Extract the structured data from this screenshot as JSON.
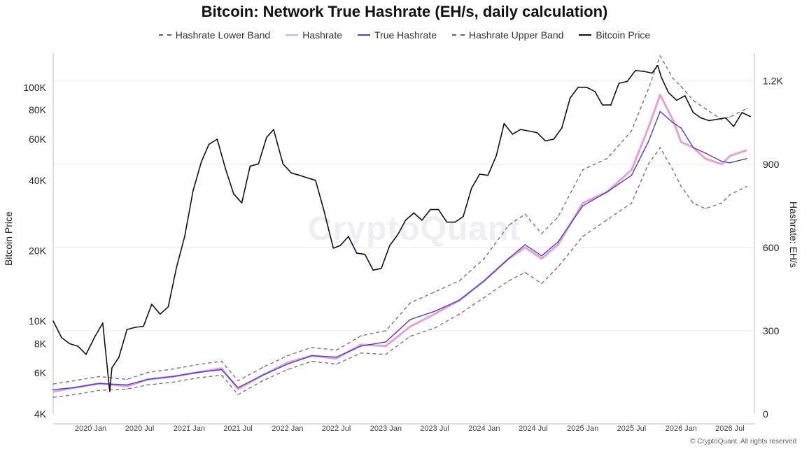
{
  "chart_data": {
    "type": "line",
    "title": "Bitcoin: Network True Hashrate (EH/s, daily calculation)",
    "ylabel_left": "Bitcoin Price",
    "ylabel_right": "Hashrate: EH/s",
    "left_axis": {
      "scale": "log",
      "range": [
        4000,
        140000
      ],
      "ticks": [
        4000,
        6000,
        8000,
        10000,
        20000,
        40000,
        60000,
        80000,
        100000
      ],
      "tick_labels": [
        "4K",
        "6K",
        "8K",
        "10K",
        "20K",
        "40K",
        "60K",
        "80K",
        "100K"
      ]
    },
    "right_axis": {
      "scale": "linear",
      "range": [
        0,
        1300
      ],
      "ticks": [
        0,
        300,
        600,
        900,
        1200
      ],
      "tick_labels": [
        "0",
        "300",
        "600",
        "900",
        "1.2K"
      ]
    },
    "x_axis": {
      "range": [
        "2019-08-15",
        "2026-09-30"
      ],
      "ticks": [
        "2020-01-01",
        "2020-07-01",
        "2021-01-01",
        "2021-07-01",
        "2022-01-01",
        "2022-07-01",
        "2023-01-01",
        "2023-07-01",
        "2024-01-01",
        "2024-07-01",
        "2025-01-01",
        "2025-07-01",
        "2026-01-01",
        "2026-07-01"
      ],
      "tick_labels": [
        "2020 Jan",
        "2020 Jul",
        "2021 Jan",
        "2021 Jul",
        "2022 Jan",
        "2022 Jul",
        "2023 Jan",
        "2023 Jul",
        "2024 Jan",
        "2024 Jul",
        "2025 Jan",
        "2025 Jul",
        "2026 Jan",
        "2026 Jul"
      ]
    },
    "grid": true,
    "legend_position": "top-center",
    "series": [
      {
        "name": "Hashrate Lower Band",
        "axis": "right",
        "color": "#777777",
        "style": "dashed",
        "x": [
          "2019-08-15",
          "2019-11-01",
          "2020-02-01",
          "2020-05-15",
          "2020-08-01",
          "2020-11-01",
          "2021-02-01",
          "2021-05-01",
          "2021-07-01",
          "2021-10-01",
          "2022-01-01",
          "2022-04-01",
          "2022-07-01",
          "2022-10-01",
          "2023-01-01",
          "2023-04-01",
          "2023-07-01",
          "2023-10-01",
          "2024-01-01",
          "2024-04-01",
          "2024-06-01",
          "2024-08-01",
          "2024-10-01",
          "2025-01-01",
          "2025-04-01",
          "2025-07-01",
          "2025-09-01",
          "2025-10-15",
          "2025-12-01",
          "2026-01-01",
          "2026-02-15",
          "2026-04-01",
          "2026-06-01",
          "2026-07-01",
          "2026-09-01"
        ],
        "values": [
          60,
          70,
          85,
          90,
          105,
          115,
          130,
          140,
          70,
          120,
          160,
          190,
          180,
          220,
          215,
          280,
          310,
          360,
          420,
          480,
          510,
          470,
          530,
          640,
          700,
          760,
          900,
          960,
          880,
          820,
          760,
          740,
          760,
          790,
          820
        ]
      },
      {
        "name": "Hashrate",
        "axis": "right",
        "color": "#e6a3cf",
        "style": "solid",
        "x": [
          "2019-08-15",
          "2019-11-01",
          "2020-02-01",
          "2020-05-15",
          "2020-08-01",
          "2020-11-01",
          "2021-02-01",
          "2021-05-01",
          "2021-07-01",
          "2021-10-01",
          "2022-01-01",
          "2022-04-01",
          "2022-07-01",
          "2022-10-01",
          "2023-01-01",
          "2023-04-01",
          "2023-07-01",
          "2023-10-01",
          "2024-01-01",
          "2024-04-01",
          "2024-06-01",
          "2024-08-01",
          "2024-10-01",
          "2025-01-01",
          "2025-04-01",
          "2025-07-01",
          "2025-09-01",
          "2025-10-15",
          "2025-12-01",
          "2026-01-01",
          "2026-02-15",
          "2026-04-01",
          "2026-06-01",
          "2026-07-01",
          "2026-09-01"
        ],
        "values": [
          80,
          95,
          110,
          100,
          125,
          135,
          150,
          165,
          90,
          140,
          185,
          210,
          200,
          250,
          245,
          315,
          360,
          410,
          480,
          560,
          600,
          560,
          610,
          760,
          800,
          880,
          1030,
          1150,
          1060,
          980,
          960,
          920,
          900,
          930,
          950
        ]
      },
      {
        "name": "True Hashrate",
        "axis": "right",
        "color": "#4a3fd0",
        "style": "solid",
        "x": [
          "2019-08-15",
          "2019-11-01",
          "2020-02-01",
          "2020-05-15",
          "2020-08-01",
          "2020-11-01",
          "2021-02-01",
          "2021-05-01",
          "2021-07-01",
          "2021-10-01",
          "2022-01-01",
          "2022-04-01",
          "2022-07-01",
          "2022-10-01",
          "2023-01-01",
          "2023-04-01",
          "2023-07-01",
          "2023-10-01",
          "2024-01-01",
          "2024-04-01",
          "2024-06-01",
          "2024-08-01",
          "2024-10-01",
          "2025-01-01",
          "2025-04-01",
          "2025-07-01",
          "2025-09-01",
          "2025-10-15",
          "2025-12-01",
          "2026-01-01",
          "2026-02-15",
          "2026-04-01",
          "2026-06-01",
          "2026-07-01",
          "2026-09-01"
        ],
        "values": [
          88,
          95,
          110,
          105,
          125,
          135,
          150,
          160,
          95,
          140,
          180,
          210,
          205,
          245,
          260,
          340,
          370,
          410,
          480,
          560,
          610,
          570,
          620,
          750,
          800,
          860,
          980,
          1090,
          1050,
          1030,
          960,
          940,
          910,
          905,
          920
        ]
      },
      {
        "name": "Hashrate Upper Band",
        "axis": "right",
        "color": "#777777",
        "style": "dashed",
        "x": [
          "2019-08-15",
          "2019-11-01",
          "2020-02-01",
          "2020-05-15",
          "2020-08-01",
          "2020-11-01",
          "2021-02-01",
          "2021-05-01",
          "2021-07-01",
          "2021-10-01",
          "2022-01-01",
          "2022-04-01",
          "2022-07-01",
          "2022-10-01",
          "2023-01-01",
          "2023-04-01",
          "2023-07-01",
          "2023-10-01",
          "2024-01-01",
          "2024-04-01",
          "2024-06-01",
          "2024-08-01",
          "2024-10-01",
          "2025-01-01",
          "2025-04-01",
          "2025-07-01",
          "2025-09-01",
          "2025-10-15",
          "2025-12-01",
          "2026-01-01",
          "2026-02-15",
          "2026-04-01",
          "2026-06-01",
          "2026-07-01",
          "2026-09-01"
        ],
        "values": [
          108,
          120,
          135,
          125,
          150,
          162,
          178,
          190,
          120,
          168,
          210,
          240,
          230,
          282,
          300,
          400,
          440,
          480,
          560,
          680,
          720,
          650,
          710,
          880,
          920,
          1020,
          1170,
          1290,
          1210,
          1180,
          1130,
          1100,
          1060,
          1070,
          1100
        ]
      },
      {
        "name": "Bitcoin Price",
        "axis": "left",
        "color": "#111111",
        "style": "solid",
        "x": [
          "2019-08-15",
          "2019-09-15",
          "2019-10-15",
          "2019-11-15",
          "2019-12-15",
          "2020-01-15",
          "2020-02-15",
          "2020-03-12",
          "2020-03-20",
          "2020-04-15",
          "2020-05-15",
          "2020-06-15",
          "2020-07-15",
          "2020-08-15",
          "2020-09-15",
          "2020-10-15",
          "2020-11-15",
          "2020-12-15",
          "2021-01-15",
          "2021-02-15",
          "2021-03-15",
          "2021-04-15",
          "2021-05-15",
          "2021-06-15",
          "2021-07-15",
          "2021-08-15",
          "2021-09-15",
          "2021-10-15",
          "2021-11-10",
          "2021-12-15",
          "2022-01-15",
          "2022-02-15",
          "2022-03-15",
          "2022-04-15",
          "2022-05-15",
          "2022-06-20",
          "2022-07-15",
          "2022-08-15",
          "2022-09-15",
          "2022-10-15",
          "2022-11-15",
          "2022-12-15",
          "2023-01-15",
          "2023-02-15",
          "2023-03-15",
          "2023-04-15",
          "2023-05-15",
          "2023-06-15",
          "2023-07-15",
          "2023-08-15",
          "2023-09-15",
          "2023-10-15",
          "2023-11-15",
          "2023-12-15",
          "2024-01-15",
          "2024-02-15",
          "2024-03-15",
          "2024-04-15",
          "2024-05-15",
          "2024-06-15",
          "2024-07-15",
          "2024-08-15",
          "2024-09-15",
          "2024-10-15",
          "2024-11-15",
          "2024-12-15",
          "2025-01-15",
          "2025-02-15",
          "2025-03-15",
          "2025-04-15",
          "2025-05-15",
          "2025-06-15",
          "2025-07-15",
          "2025-08-15",
          "2025-09-15",
          "2025-10-06",
          "2025-10-20",
          "2025-11-15",
          "2025-12-15",
          "2026-01-15",
          "2026-02-15",
          "2026-03-15",
          "2026-04-15",
          "2026-05-15",
          "2026-06-15",
          "2026-07-15",
          "2026-08-15",
          "2026-09-15"
        ],
        "values": [
          10000,
          8500,
          8000,
          7800,
          7200,
          8500,
          9800,
          5000,
          6300,
          7000,
          9200,
          9400,
          9500,
          11800,
          10700,
          11500,
          17000,
          23000,
          36000,
          48000,
          57000,
          60000,
          45000,
          35000,
          32000,
          46000,
          47000,
          61000,
          66000,
          47000,
          43000,
          42000,
          41000,
          40000,
          30000,
          20500,
          21000,
          23000,
          19500,
          19300,
          16500,
          16800,
          21000,
          23500,
          27000,
          29000,
          27000,
          30000,
          30000,
          26500,
          26500,
          28000,
          37000,
          42500,
          42000,
          51000,
          70000,
          63000,
          66000,
          65000,
          64000,
          59000,
          60000,
          67000,
          90000,
          100000,
          100000,
          96000,
          84000,
          84000,
          104000,
          106000,
          118000,
          117000,
          115000,
          124000,
          110000,
          95000,
          88000,
          92000,
          78000,
          74000,
          72000,
          73000,
          74000,
          68000,
          78000,
          75000
        ]
      }
    ]
  },
  "footer": "© CryptoQuant. All rights reserved",
  "watermark": "CryptoQuant"
}
